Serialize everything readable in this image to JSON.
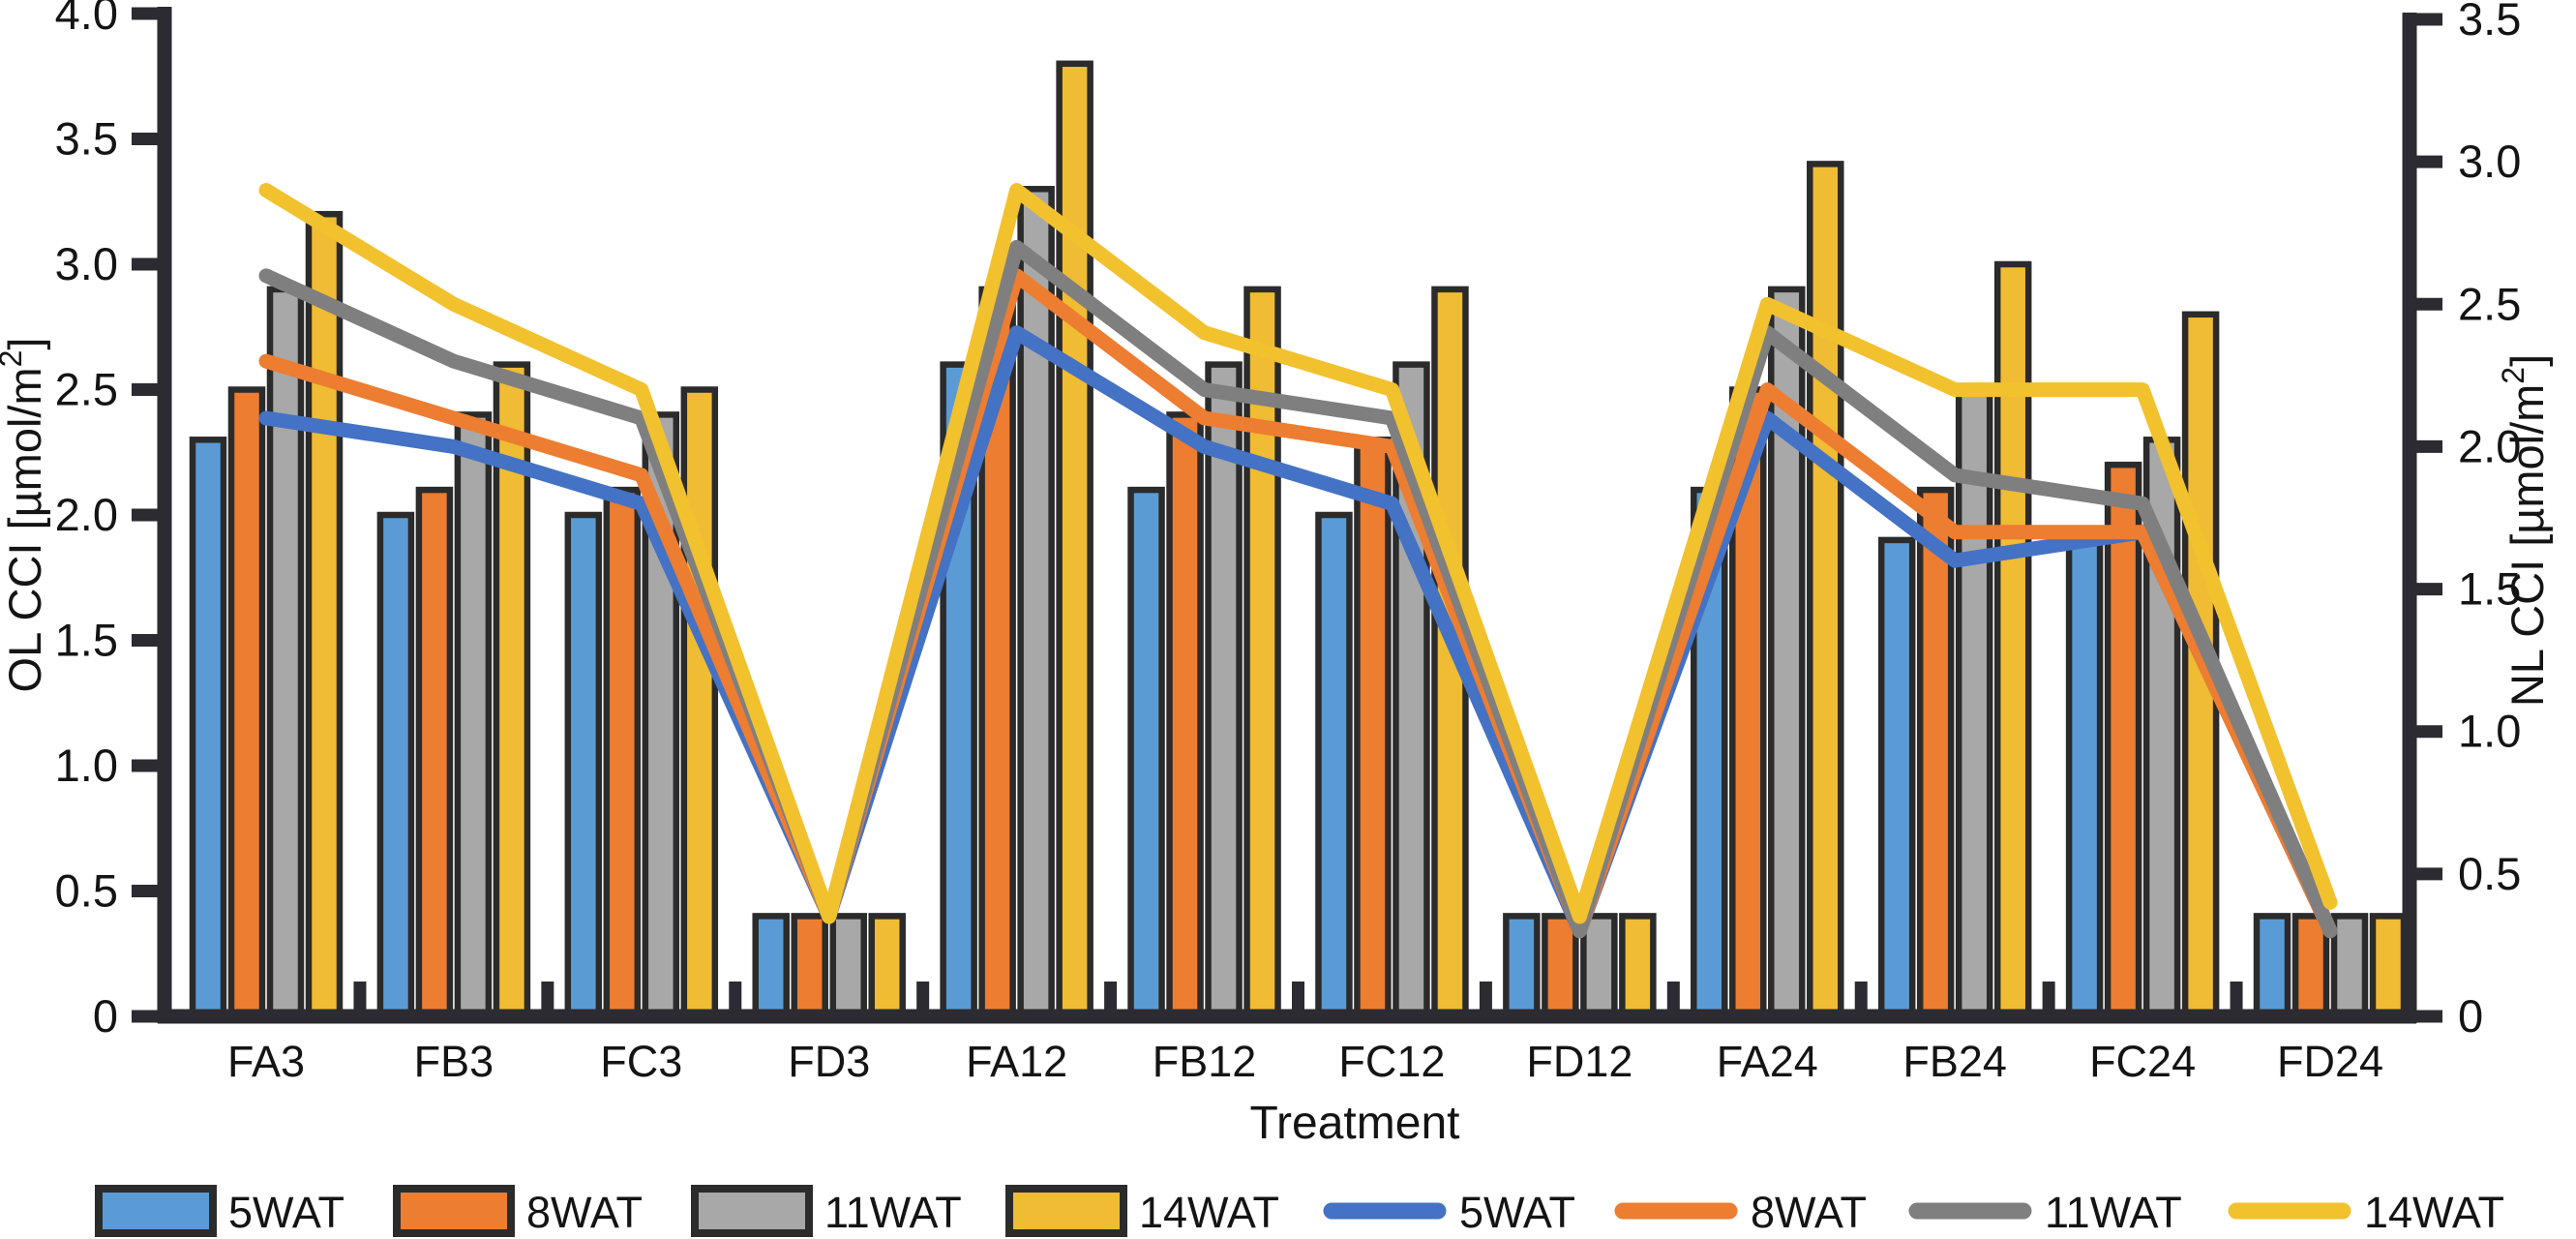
{
  "chart_data": {
    "type": "bar+line-dual-axis",
    "title": "",
    "xlabel": "Treatment",
    "categories": [
      "FA3",
      "FB3",
      "FC3",
      "FD3",
      "FA12",
      "FB12",
      "FC12",
      "FD12",
      "FA24",
      "FB24",
      "FC24",
      "FD24"
    ],
    "left_axis": {
      "title_main": "OL CCI [µmol/m",
      "title_sup": "2",
      "title_close": "]",
      "range": [
        0,
        4.0
      ],
      "tick_step": 0.5,
      "tick_labels": [
        "0",
        "0.5",
        "1.0",
        "1.5",
        "2.0",
        "2.5",
        "3.0",
        "3.5",
        "4.0"
      ]
    },
    "right_axis": {
      "title_main": "NL CCI [µmol/m",
      "title_sup": "2",
      "title_close": "]",
      "range": [
        0,
        3.5
      ],
      "tick_step": 0.5,
      "tick_labels": [
        "0",
        "0.5",
        "1.0",
        "1.5",
        "2.0",
        "2.5",
        "3.0",
        "3.5"
      ]
    },
    "bar_series": [
      {
        "name": "5WAT",
        "color": "#5B9BD5",
        "values": [
          2.3,
          2.0,
          2.0,
          0.4,
          2.6,
          2.1,
          2.0,
          0.4,
          2.1,
          1.9,
          1.9,
          0.4
        ]
      },
      {
        "name": "8WAT",
        "color": "#ED7D31",
        "values": [
          2.5,
          2.1,
          2.1,
          0.4,
          2.9,
          2.4,
          2.3,
          0.4,
          2.5,
          2.1,
          2.2,
          0.4
        ]
      },
      {
        "name": "11WAT",
        "color": "#A8A8A8",
        "values": [
          2.9,
          2.4,
          2.4,
          0.4,
          3.3,
          2.6,
          2.6,
          0.4,
          2.9,
          2.5,
          2.3,
          0.4
        ]
      },
      {
        "name": "14WAT",
        "color": "#F0BC33",
        "values": [
          3.2,
          2.6,
          2.5,
          0.4,
          3.8,
          2.9,
          2.9,
          0.4,
          3.4,
          3.0,
          2.8,
          0.4
        ]
      }
    ],
    "line_series": [
      {
        "name": "5WAT",
        "color": "#4472C4",
        "values": [
          2.1,
          2.0,
          1.8,
          0.35,
          2.4,
          2.0,
          1.8,
          0.3,
          2.1,
          1.6,
          1.7,
          0.3
        ]
      },
      {
        "name": "8WAT",
        "color": "#ED7D31",
        "values": [
          2.3,
          2.1,
          1.9,
          0.35,
          2.6,
          2.1,
          2.0,
          0.3,
          2.2,
          1.7,
          1.7,
          0.3
        ]
      },
      {
        "name": "11WAT",
        "color": "#7F7F7F",
        "values": [
          2.6,
          2.3,
          2.1,
          0.35,
          2.7,
          2.2,
          2.1,
          0.3,
          2.4,
          1.9,
          1.8,
          0.3
        ]
      },
      {
        "name": "14WAT",
        "color": "#F2C12E",
        "values": [
          2.9,
          2.5,
          2.2,
          0.35,
          2.9,
          2.4,
          2.2,
          0.35,
          2.5,
          2.2,
          2.2,
          0.4
        ]
      }
    ],
    "legend_position": "bottom",
    "grid": false,
    "outline_color": "#2B2B2B",
    "axis_color": "#2B2B31",
    "bars_on": "left_axis",
    "lines_on": "right_axis"
  }
}
